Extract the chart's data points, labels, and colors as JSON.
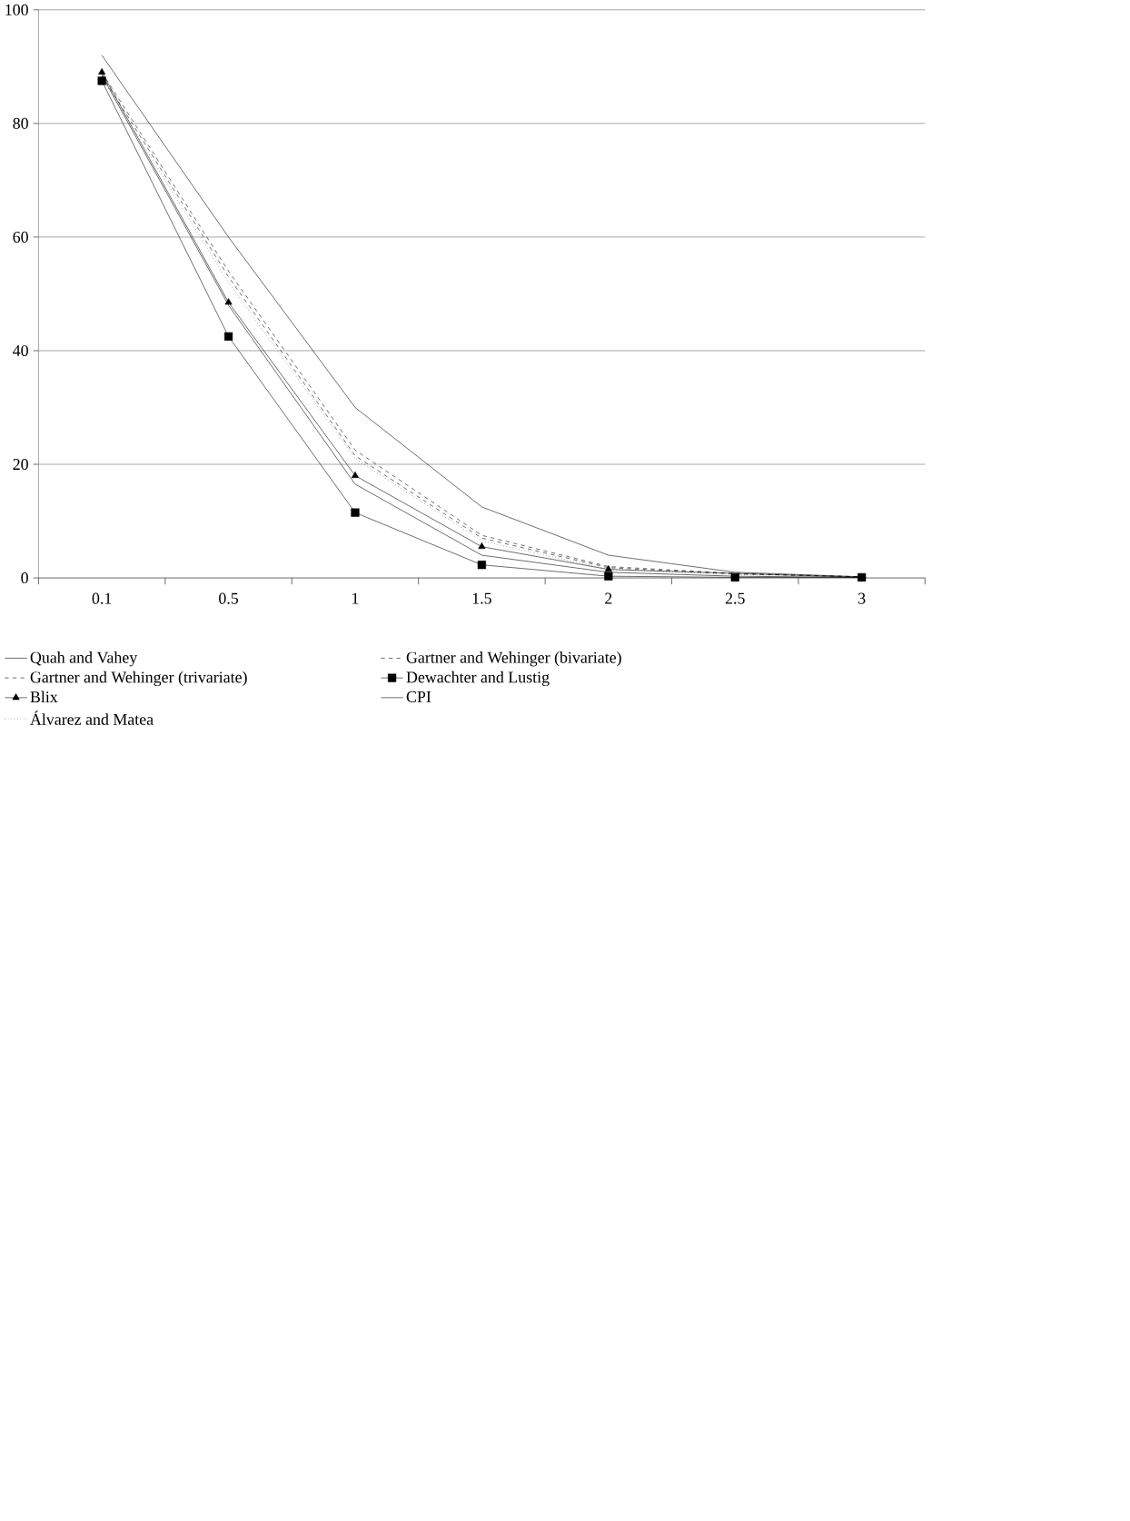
{
  "chart_data": {
    "type": "line",
    "categories": [
      "0.1",
      "0.5",
      "1",
      "1.5",
      "2",
      "2.5",
      "3"
    ],
    "ylim": [
      0,
      100
    ],
    "yticks": [
      0,
      20,
      40,
      60,
      80,
      100
    ],
    "grid": "y",
    "legend": "bottom",
    "marker": "none",
    "series": [
      {
        "name": "Quah and Vahey",
        "color": "#000000",
        "line_style": "solid",
        "values": [
          88.5,
          48,
          16.5,
          4,
          1,
          0.3,
          0.1
        ]
      },
      {
        "name": "Gartner and Wehinger (bivariate)",
        "color": "#000000",
        "line_style": "dashed",
        "values": [
          89,
          54,
          22.5,
          7.5,
          2,
          0.8,
          0.2
        ]
      },
      {
        "name": "Gartner and Wehinger (trivariate)",
        "color": "#000000",
        "line_style": "dashed",
        "values": [
          88.5,
          53,
          21.5,
          7,
          1.8,
          0.7,
          0.2
        ]
      },
      {
        "name": "Dewachter and Lustig",
        "color": "#000000",
        "marker": "square",
        "values": [
          87.5,
          42.5,
          11.5,
          2.3,
          0.3,
          0.1,
          0.1
        ]
      },
      {
        "name": "Blix",
        "color": "#000000",
        "marker": "triangle",
        "values": [
          89,
          48.5,
          18,
          5.5,
          1.5,
          null,
          0.1
        ]
      },
      {
        "name": "CPI",
        "color": "#000000",
        "line_style": "solid",
        "values": [
          92,
          60,
          30,
          12.5,
          4,
          1,
          0.2
        ]
      },
      {
        "name": "Álvarez and Matea",
        "color": "#000000",
        "line_style": "dotted",
        "values": [
          88,
          52,
          21,
          6.5,
          1.5,
          0.6,
          0.2
        ]
      }
    ]
  }
}
